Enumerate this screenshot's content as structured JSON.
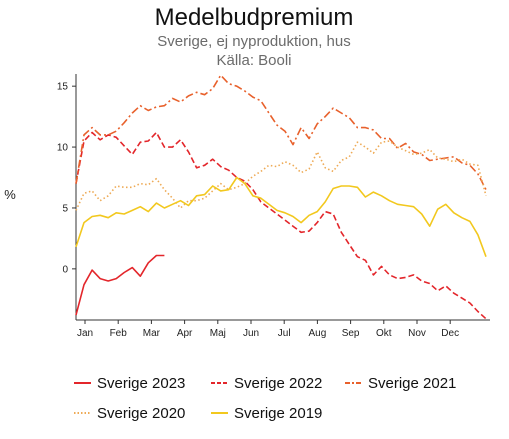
{
  "chart_data": {
    "type": "line",
    "title": "Medelbudpremium",
    "subtitle": "Sverige, ej nyproduktion, hus",
    "source": "Källa: Booli",
    "ylabel": "%",
    "xlabel": "",
    "x_ticks": [
      "Jan",
      "Feb",
      "Mar",
      "Apr",
      "Maj",
      "Jun",
      "Jul",
      "Aug",
      "Sep",
      "Okt",
      "Nov",
      "Dec"
    ],
    "y_ticks": [
      0,
      5,
      10,
      15
    ],
    "ylim": [
      -4.2,
      16
    ],
    "xlim": [
      1,
      52.5
    ],
    "grid": false,
    "legend": "bottom",
    "series": [
      {
        "name": "Sverige 2023",
        "color": "#e3262b",
        "style": "solid",
        "x": [
          1,
          2,
          3,
          4,
          5,
          6,
          7,
          8,
          9,
          10,
          11,
          12
        ],
        "y": [
          -3.8,
          -1.3,
          -0.1,
          -0.8,
          -1.0,
          -0.8,
          -0.3,
          0.1,
          -0.6,
          0.5,
          1.1,
          1.1
        ]
      },
      {
        "name": "Sverige 2022",
        "color": "#e3262b",
        "style": "dashed",
        "x": [
          1,
          2,
          3,
          4,
          5,
          6,
          7,
          8,
          9,
          10,
          11,
          12,
          13,
          14,
          15,
          16,
          17,
          18,
          19,
          20,
          21,
          22,
          23,
          24,
          25,
          26,
          27,
          28,
          29,
          30,
          31,
          32,
          33,
          34,
          35,
          36,
          37,
          38,
          39,
          40,
          41,
          42,
          43,
          44,
          45,
          46,
          47,
          48,
          49,
          50,
          51,
          52
        ],
        "y": [
          7.0,
          10.5,
          11.2,
          10.6,
          11.0,
          10.8,
          10.1,
          9.4,
          10.4,
          10.5,
          11.2,
          10.0,
          10.0,
          10.6,
          9.6,
          8.3,
          8.5,
          9.0,
          8.4,
          8.1,
          7.5,
          7.2,
          6.5,
          5.5,
          5.0,
          4.5,
          4.0,
          3.5,
          3.0,
          3.1,
          3.8,
          4.7,
          4.5,
          3.0,
          2.0,
          1.0,
          0.7,
          -0.5,
          0.2,
          -0.5,
          -0.8,
          -0.7,
          -0.5,
          -1.0,
          -1.2,
          -1.8,
          -1.4,
          -2.0,
          -2.4,
          -2.8,
          -3.5,
          -4.1
        ]
      },
      {
        "name": "Sverige 2021",
        "color": "#e8612c",
        "style": "dashdot",
        "x": [
          1,
          2,
          3,
          4,
          5,
          6,
          7,
          8,
          9,
          10,
          11,
          12,
          13,
          14,
          15,
          16,
          17,
          18,
          19,
          20,
          21,
          22,
          23,
          24,
          25,
          26,
          27,
          28,
          29,
          30,
          31,
          32,
          33,
          34,
          35,
          36,
          37,
          38,
          39,
          40,
          41,
          42,
          43,
          44,
          45,
          46,
          47,
          48,
          49,
          50,
          51,
          52
        ],
        "y": [
          7.0,
          11.0,
          11.6,
          11.0,
          11.0,
          11.3,
          12.0,
          12.8,
          13.4,
          13.0,
          13.3,
          13.4,
          14.0,
          13.7,
          14.2,
          14.5,
          14.3,
          14.8,
          15.9,
          15.2,
          15.0,
          14.6,
          14.1,
          13.8,
          12.8,
          11.8,
          11.3,
          10.2,
          11.6,
          10.7,
          11.9,
          12.5,
          13.2,
          12.8,
          12.4,
          11.6,
          11.6,
          11.4,
          10.7,
          10.7,
          9.9,
          10.3,
          9.6,
          9.4,
          8.9,
          9.0,
          9.1,
          9.2,
          8.7,
          8.5,
          7.8,
          6.5
        ]
      },
      {
        "name": "Sverige 2020",
        "color": "#eeaa55",
        "style": "dotted",
        "x": [
          1,
          2,
          3,
          4,
          5,
          6,
          7,
          8,
          9,
          10,
          11,
          12,
          13,
          14,
          15,
          16,
          17,
          18,
          19,
          20,
          21,
          22,
          23,
          24,
          25,
          26,
          27,
          28,
          29,
          30,
          31,
          32,
          33,
          34,
          35,
          36,
          37,
          38,
          39,
          40,
          41,
          42,
          43,
          44,
          45,
          46,
          47,
          48,
          49,
          50,
          51,
          52
        ],
        "y": [
          4.8,
          6.2,
          6.4,
          5.6,
          6.0,
          6.8,
          6.7,
          6.7,
          7.0,
          6.9,
          7.4,
          6.5,
          5.8,
          5.0,
          5.6,
          5.6,
          5.8,
          6.4,
          7.0,
          6.5,
          6.7,
          7.0,
          7.6,
          8.0,
          8.5,
          8.4,
          8.8,
          8.5,
          7.9,
          8.2,
          9.6,
          8.3,
          8.0,
          8.9,
          9.2,
          10.4,
          10.0,
          9.5,
          10.4,
          10.5,
          10.0,
          9.7,
          9.4,
          9.5,
          9.8,
          9.1,
          9.0,
          8.8,
          9.0,
          8.6,
          8.5,
          6.0
        ]
      },
      {
        "name": "Sverige 2019",
        "color": "#f2c81e",
        "style": "solid",
        "x": [
          1,
          2,
          3,
          4,
          5,
          6,
          7,
          8,
          9,
          10,
          11,
          12,
          13,
          14,
          15,
          16,
          17,
          18,
          19,
          20,
          21,
          22,
          23,
          24,
          25,
          26,
          27,
          28,
          29,
          30,
          31,
          32,
          33,
          34,
          35,
          36,
          37,
          38,
          39,
          40,
          41,
          42,
          43,
          44,
          45,
          46,
          47,
          48,
          49,
          50,
          51,
          52
        ],
        "y": [
          1.8,
          3.8,
          4.3,
          4.4,
          4.2,
          4.6,
          4.5,
          4.8,
          5.1,
          4.7,
          5.4,
          5.0,
          5.3,
          5.6,
          5.2,
          6.0,
          6.1,
          6.8,
          6.4,
          6.5,
          7.5,
          7.0,
          6.0,
          5.8,
          5.3,
          4.8,
          4.6,
          4.3,
          3.8,
          4.4,
          4.7,
          5.5,
          6.6,
          6.8,
          6.8,
          6.7,
          5.9,
          6.3,
          6.0,
          5.6,
          5.3,
          5.2,
          5.1,
          4.5,
          3.5,
          4.9,
          5.3,
          4.6,
          4.2,
          3.9,
          2.8,
          1.0
        ]
      }
    ]
  }
}
